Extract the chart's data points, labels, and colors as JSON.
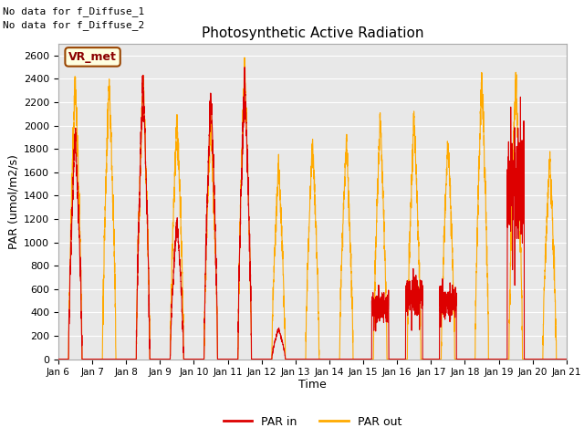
{
  "title": "Photosynthetic Active Radiation",
  "ylabel": "PAR (umol/m2/s)",
  "xlabel": "Time",
  "ylim": [
    0,
    2700
  ],
  "yticks": [
    0,
    200,
    400,
    600,
    800,
    1000,
    1200,
    1400,
    1600,
    1800,
    2000,
    2200,
    2400,
    2600
  ],
  "xtick_labels": [
    "Jan 6",
    "Jan 7",
    "Jan 8",
    "Jan 9",
    "Jan 10",
    "Jan 11",
    "Jan 12",
    "Jan 13",
    "Jan 14",
    "Jan 15",
    "Jan 16",
    "Jan 17",
    "Jan 18",
    "Jan 19",
    "Jan 20",
    "Jan 21"
  ],
  "text_no_data_1": "No data for f_Diffuse_1",
  "text_no_data_2": "No data for f_Diffuse_2",
  "legend_label_box": "VR_met",
  "color_par_in": "#dd0000",
  "color_par_out": "#ffaa00",
  "background_color": "#e8e8e8",
  "days": 15,
  "par_in_peaks": [
    1950,
    0,
    2380,
    1200,
    2300,
    2430,
    260,
    0,
    0,
    440,
    550,
    480,
    0,
    1490,
    0
  ],
  "par_out_peaks": [
    2400,
    2390,
    2370,
    2080,
    2050,
    2480,
    1660,
    1870,
    1880,
    2050,
    2060,
    1870,
    2420,
    2420,
    1730
  ],
  "par_in_flat_days": [
    1,
    7,
    8,
    12,
    14
  ],
  "par_out_flat_days": []
}
